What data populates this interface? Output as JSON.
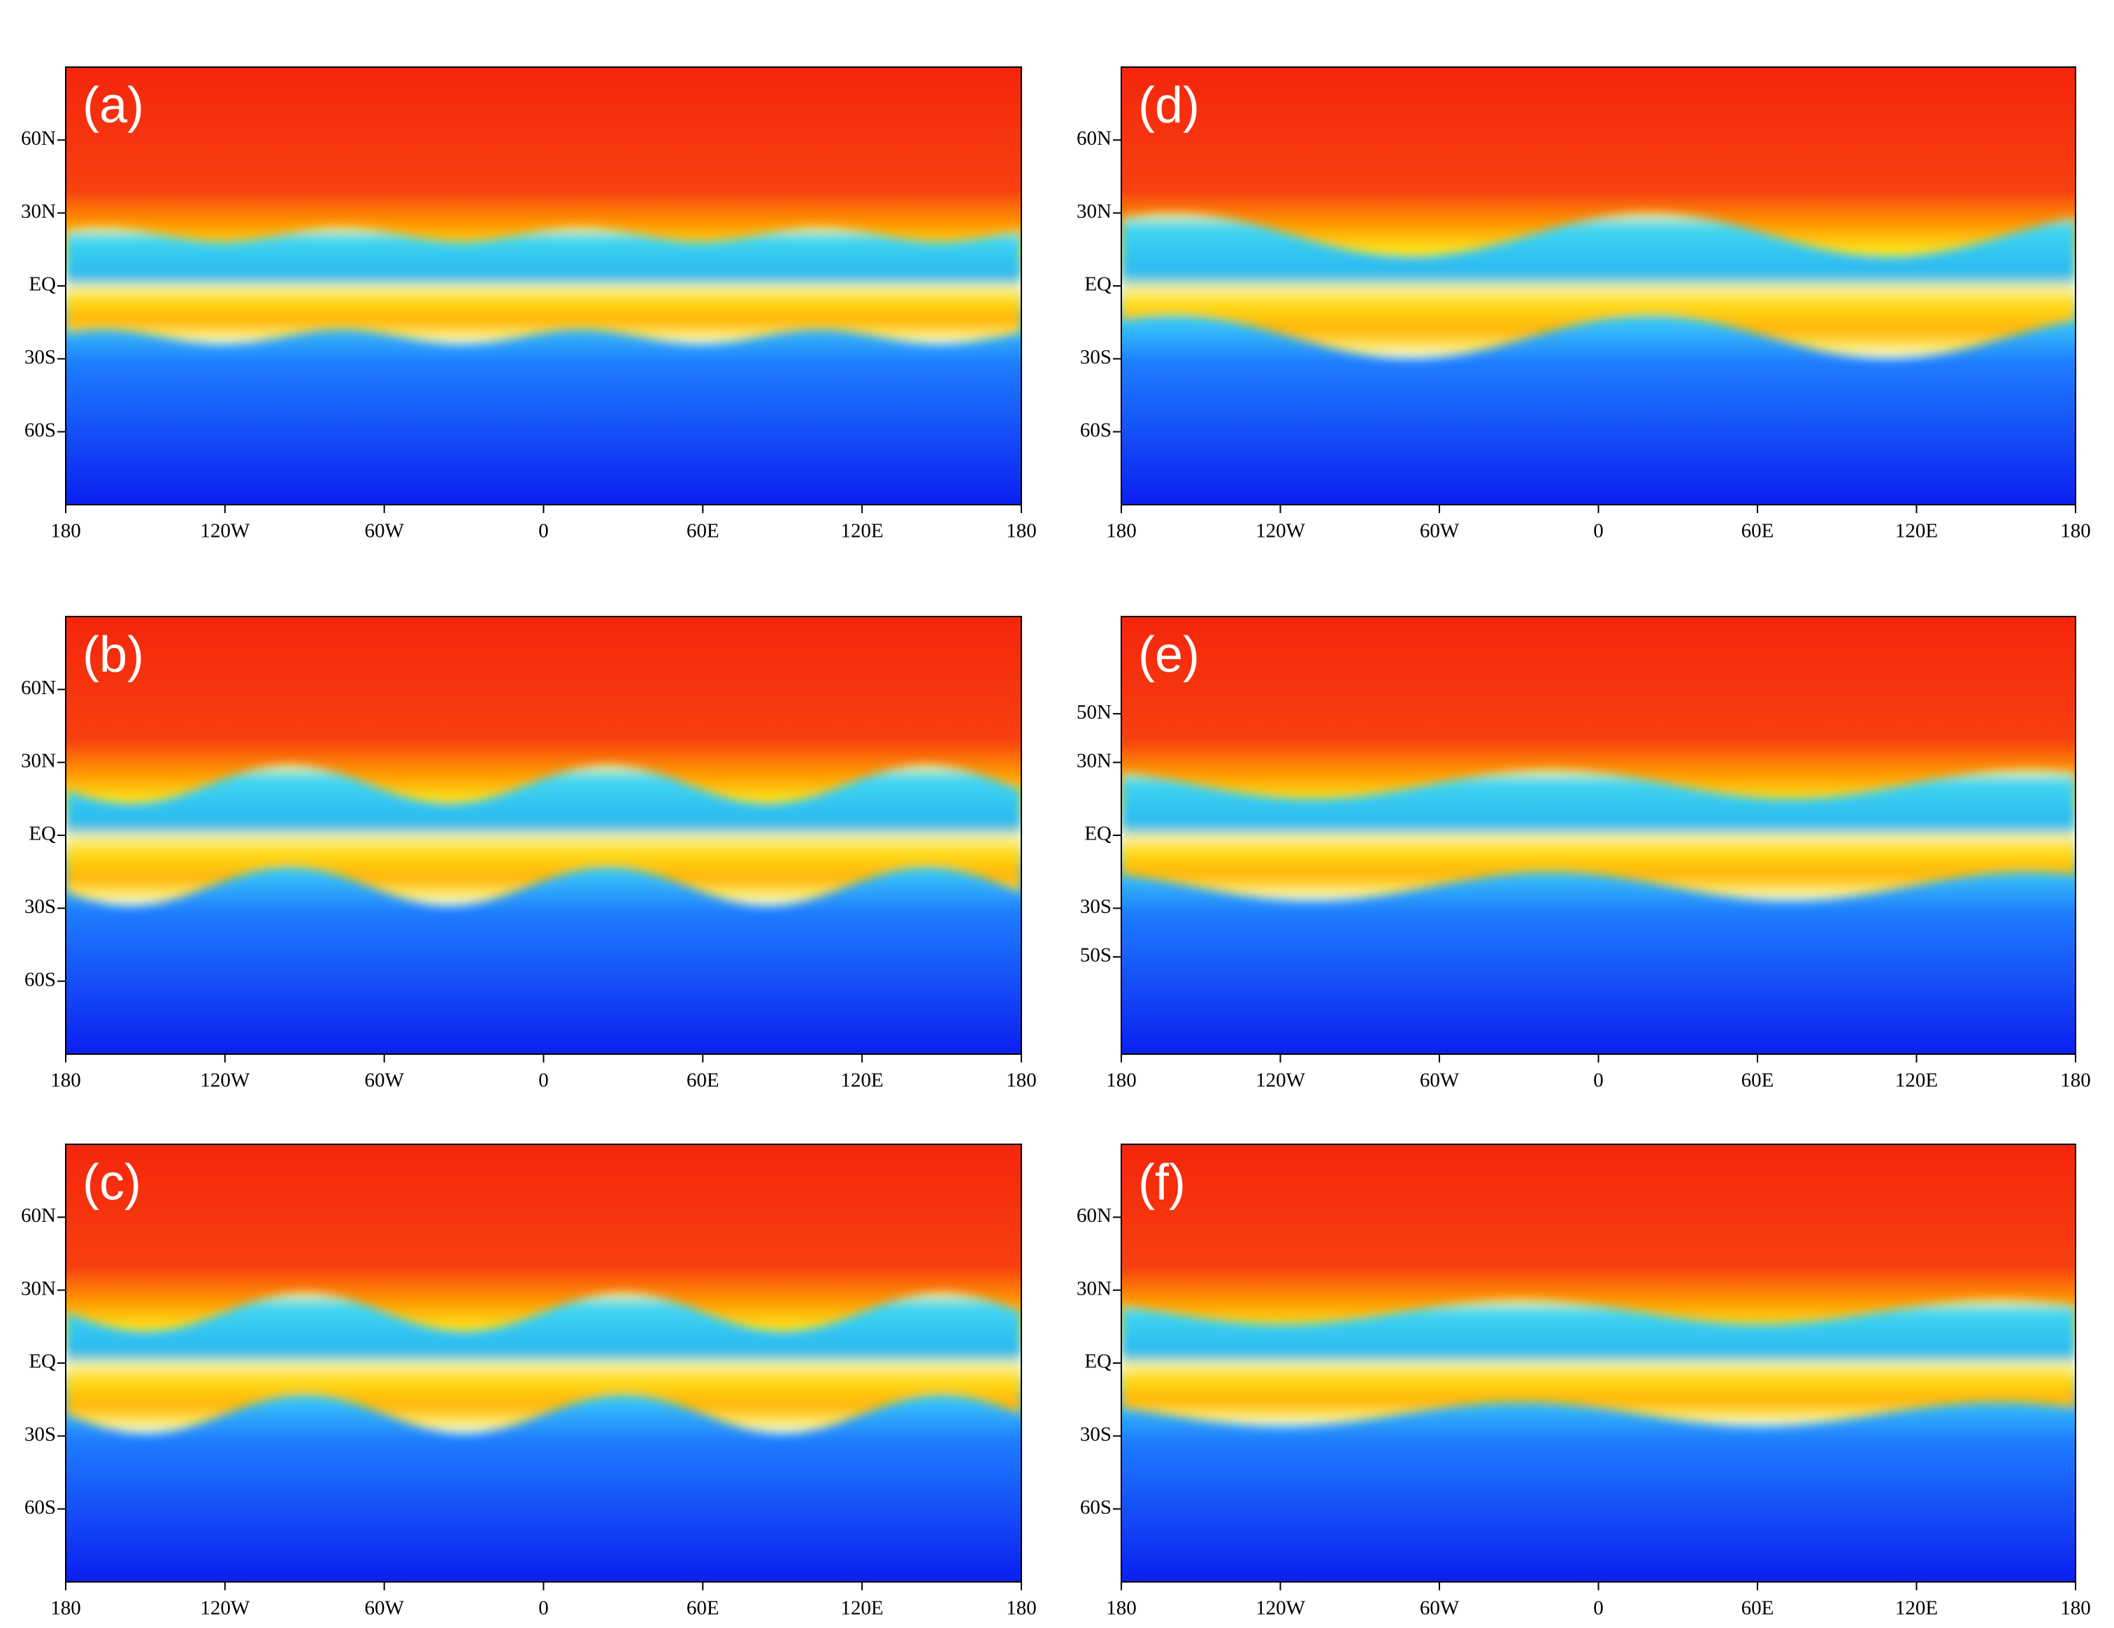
{
  "chart_data": [
    {
      "type": "field",
      "label": "(a)",
      "xlim": [
        -180,
        180
      ],
      "ylim": [
        -90,
        90
      ],
      "xticks": [
        {
          "value": -180,
          "label": "180"
        },
        {
          "value": -120,
          "label": "120W"
        },
        {
          "value": -60,
          "label": "60W"
        },
        0,
        {
          "value": 60,
          "label": "60E"
        },
        {
          "value": 120,
          "label": "120E"
        },
        180
      ],
      "yticks": [
        {
          "value": 60,
          "label": "60N"
        },
        {
          "value": 30,
          "label": "30N"
        },
        {
          "value": 0,
          "label": "EQ"
        },
        {
          "value": -30,
          "label": "30S"
        },
        {
          "value": -60,
          "label": "60S"
        }
      ]
    },
    {
      "type": "field",
      "label": "(b)",
      "xlim": [
        -180,
        180
      ],
      "ylim": [
        -90,
        90
      ],
      "xticks": [
        {
          "value": -180,
          "label": "180"
        },
        {
          "value": -120,
          "label": "120W"
        },
        {
          "value": -60,
          "label": "60W"
        },
        0,
        {
          "value": 60,
          "label": "60E"
        },
        {
          "value": 120,
          "label": "120E"
        },
        180
      ],
      "yticks": [
        {
          "value": 60,
          "label": "60N"
        },
        {
          "value": 30,
          "label": "30N"
        },
        {
          "value": 0,
          "label": "EQ"
        },
        {
          "value": -30,
          "label": "30S"
        },
        {
          "value": -60,
          "label": "60S"
        }
      ]
    },
    {
      "type": "field",
      "label": "(c)",
      "xlim": [
        -180,
        180
      ],
      "ylim": [
        -90,
        90
      ],
      "xticks": [
        {
          "value": -180,
          "label": "180"
        },
        {
          "value": -120,
          "label": "120W"
        },
        {
          "value": -60,
          "label": "60W"
        },
        0,
        {
          "value": 60,
          "label": "60E"
        },
        {
          "value": 120,
          "label": "120E"
        },
        180
      ],
      "yticks": [
        {
          "value": 60,
          "label": "60N"
        },
        {
          "value": 30,
          "label": "30N"
        },
        {
          "value": 0,
          "label": "EQ"
        },
        {
          "value": -30,
          "label": "30S"
        },
        {
          "value": -60,
          "label": "60S"
        }
      ]
    },
    {
      "type": "field",
      "label": "(d)",
      "xlim": [
        -180,
        180
      ],
      "ylim": [
        -90,
        90
      ],
      "xticks": [
        {
          "value": -180,
          "label": "180"
        },
        {
          "value": -120,
          "label": "120W"
        },
        {
          "value": -60,
          "label": "60W"
        },
        0,
        {
          "value": 60,
          "label": "60E"
        },
        {
          "value": 120,
          "label": "120E"
        },
        180
      ],
      "yticks": [
        {
          "value": 60,
          "label": "60N"
        },
        {
          "value": 30,
          "label": "30N"
        },
        {
          "value": 0,
          "label": "EQ"
        },
        {
          "value": -30,
          "label": "30S"
        },
        {
          "value": -60,
          "label": "60S"
        }
      ]
    },
    {
      "type": "field",
      "label": "(e)",
      "xlim": [
        -180,
        180
      ],
      "ylim": [
        -90,
        90
      ],
      "xticks": [
        {
          "value": -180,
          "label": "180"
        },
        {
          "value": -120,
          "label": "120W"
        },
        {
          "value": -60,
          "label": "60W"
        },
        0,
        {
          "value": 60,
          "label": "60E"
        },
        {
          "value": 120,
          "label": "120E"
        },
        180
      ],
      "yticks": [
        {
          "value": 50,
          "label": "50N"
        },
        {
          "value": 30,
          "label": "30N"
        },
        {
          "value": 0,
          "label": "EQ"
        },
        {
          "value": -30,
          "label": "30S"
        },
        {
          "value": -50,
          "label": "50S"
        }
      ]
    },
    {
      "type": "field",
      "label": "(f)",
      "xlim": [
        -180,
        180
      ],
      "ylim": [
        -90,
        90
      ],
      "xticks": [
        {
          "value": -180,
          "label": "180"
        },
        {
          "value": -120,
          "label": "120W"
        },
        {
          "value": -60,
          "label": "60W"
        },
        0,
        {
          "value": 60,
          "label": "60E"
        },
        {
          "value": 120,
          "label": "120E"
        },
        180
      ],
      "yticks": [
        {
          "value": 60,
          "label": "60N"
        },
        {
          "value": 30,
          "label": "30N"
        },
        {
          "value": 0,
          "label": "EQ"
        },
        {
          "value": -30,
          "label": "30S"
        },
        {
          "value": -60,
          "label": "60S"
        }
      ]
    }
  ]
}
